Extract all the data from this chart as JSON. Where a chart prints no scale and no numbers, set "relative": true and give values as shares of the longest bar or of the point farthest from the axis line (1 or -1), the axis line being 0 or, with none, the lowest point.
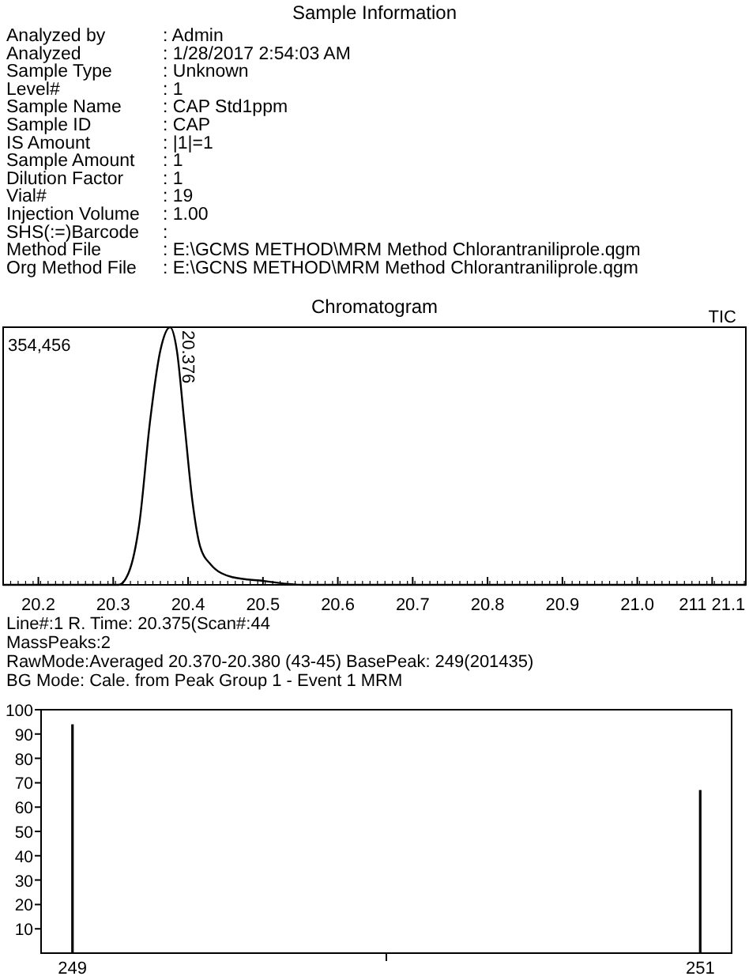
{
  "chart_data": [
    {
      "type": "other",
      "title": "Sample Information",
      "categories": [
        "Analyzed by",
        "Analyzed",
        "Sample Type",
        "Level#",
        "Sample Name",
        "Sample ID",
        "IS Amount",
        "Sample Amount",
        "Dilution Factor",
        "Vial#",
        "Injection Volume",
        "SHS(:=)Barcode",
        "Method File",
        "Org Method File"
      ],
      "annotations": [
        ": Admin",
        ": 1/28/2017 2:54:03 AM",
        ": Unknown",
        ": 1",
        ": CAP Std1ppm",
        ": CAP",
        ": |1|=1",
        ": 1",
        ": 1",
        ": 19",
        ": 1.00",
        ":",
        ": E:\\GCMS METHOD\\MRM Method Chlorantraniliprole.qgm",
        ": E:\\GCNS METHOD\\MRM Method Chlorantraniliprole.qgm"
      ]
    },
    {
      "type": "line",
      "title": "Chromatogram",
      "relative": true,
      "tick_labels": "x",
      "x": [
        20.153,
        20.307,
        20.321,
        20.335,
        20.349,
        20.363,
        20.376,
        20.385,
        20.395,
        20.406,
        20.416,
        20.43,
        20.459,
        20.501,
        20.554,
        21.145
      ],
      "series": [
        {
          "color": "#000000",
          "values": [
            0,
            0,
            0.05,
            0.24,
            0.63,
            0.91,
            1,
            0.91,
            0.63,
            0.32,
            0.15,
            0.08,
            0.03,
            0.015,
            0,
            0
          ]
        }
      ],
      "xlim": [
        20.153,
        21.145
      ],
      "xticks": [
        20.2,
        20.3,
        20.4,
        20.5,
        20.6,
        20.7,
        20.8,
        20.9,
        {
          "value": 21.0,
          "label": "21.0"
        },
        {
          "value": 21.1,
          "label": "211 21.1"
        }
      ],
      "annotations": [
        "354,456",
        "TIC",
        {
          "text": "20.376",
          "x": 20.376,
          "y": 1
        }
      ]
    },
    {
      "type": "bar",
      "categories": [
        "249",
        "251"
      ],
      "series": [
        {
          "color": "#000000",
          "values": [
            94,
            67
          ]
        }
      ],
      "ylim": [
        0,
        100
      ],
      "yticks": [
        10,
        20,
        30,
        40,
        50,
        60,
        70,
        80,
        90,
        100
      ],
      "annotations": [
        "Line#:1 R. Time: 20.375(Scan#:44",
        "MassPeaks:2",
        "RawMode:Averaged 20.370-20.380 (43-45) BasePeak: 249(201435)",
        "BG Mode: Cale. from Peak Group 1 - Event 1 MRM"
      ]
    }
  ]
}
